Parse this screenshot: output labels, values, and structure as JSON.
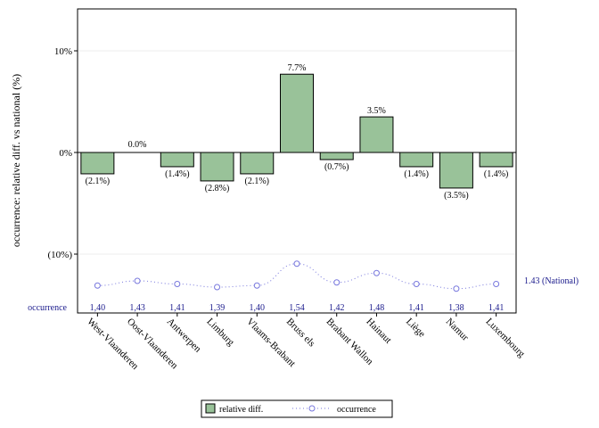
{
  "chart_data": {
    "type": "bar",
    "ylabel": "occurrence: relative diff. vs national (%)",
    "y_ticks": [
      {
        "value": 10,
        "label": "10%"
      },
      {
        "value": 0,
        "label": "0%"
      },
      {
        "value": -10,
        "label": "(10%)"
      }
    ],
    "ylim": [
      -15.5,
      14
    ],
    "grid": true,
    "categories": [
      "West-Vlaanderen",
      "Oost-Vlaanderen",
      "Antwerpen",
      "Limburg",
      "Vlaams-Brabant",
      "Bruss els",
      "Brabant Wallon",
      "Hainaut",
      "Liège",
      "Namur",
      "Luxembourg"
    ],
    "series": [
      {
        "name": "relative diff.",
        "type": "bar",
        "values": [
          -2.1,
          0.0,
          -1.4,
          -2.8,
          -2.1,
          7.7,
          -0.7,
          3.5,
          -1.4,
          -3.5,
          -1.4
        ],
        "labels": [
          "(2.1%)",
          "0.0%",
          "(1.4%)",
          "(2.8%)",
          "(2.1%)",
          "7.7%",
          "(0.7%)",
          "3.5%",
          "(1.4%)",
          "(3.5%)",
          "(1.4%)"
        ],
        "color": "#99c299"
      },
      {
        "name": "occurrence",
        "type": "line",
        "values": [
          1.4,
          1.43,
          1.41,
          1.39,
          1.4,
          1.54,
          1.42,
          1.48,
          1.41,
          1.38,
          1.41
        ],
        "labels": [
          "1,40",
          "1,43",
          "1,41",
          "1,39",
          "1,40",
          "1,54",
          "1,42",
          "1,48",
          "1,41",
          "1,38",
          "1,41"
        ],
        "color": "#7777dd"
      }
    ],
    "occurrence_row_label": "occurrence",
    "national_label": "1.43 (National)",
    "national_value": 1.43,
    "legend_position": "bottom-center",
    "colors": {
      "bar_fill": "#99c299",
      "bar_stroke": "#000000",
      "line": "#7777dd",
      "occ_text": "#1a1a8c"
    }
  }
}
